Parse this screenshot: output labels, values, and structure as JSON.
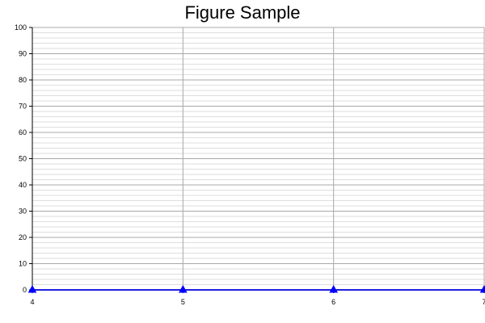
{
  "chart_data": {
    "type": "line",
    "title": "Figure Sample",
    "xlabel": "",
    "ylabel": "",
    "xlim": [
      4,
      7
    ],
    "ylim": [
      0,
      100
    ],
    "x_ticks": [
      "4",
      "5",
      "6",
      "7"
    ],
    "y_ticks": [
      "0",
      "10",
      "20",
      "30",
      "40",
      "50",
      "60",
      "70",
      "80",
      "90",
      "100"
    ],
    "grid": true,
    "minor_grid": true,
    "series": [
      {
        "x": [
          4,
          5,
          6,
          7
        ],
        "y": [
          0,
          0,
          0,
          0
        ],
        "color": "#0000ff",
        "marker": "triangle"
      }
    ]
  }
}
